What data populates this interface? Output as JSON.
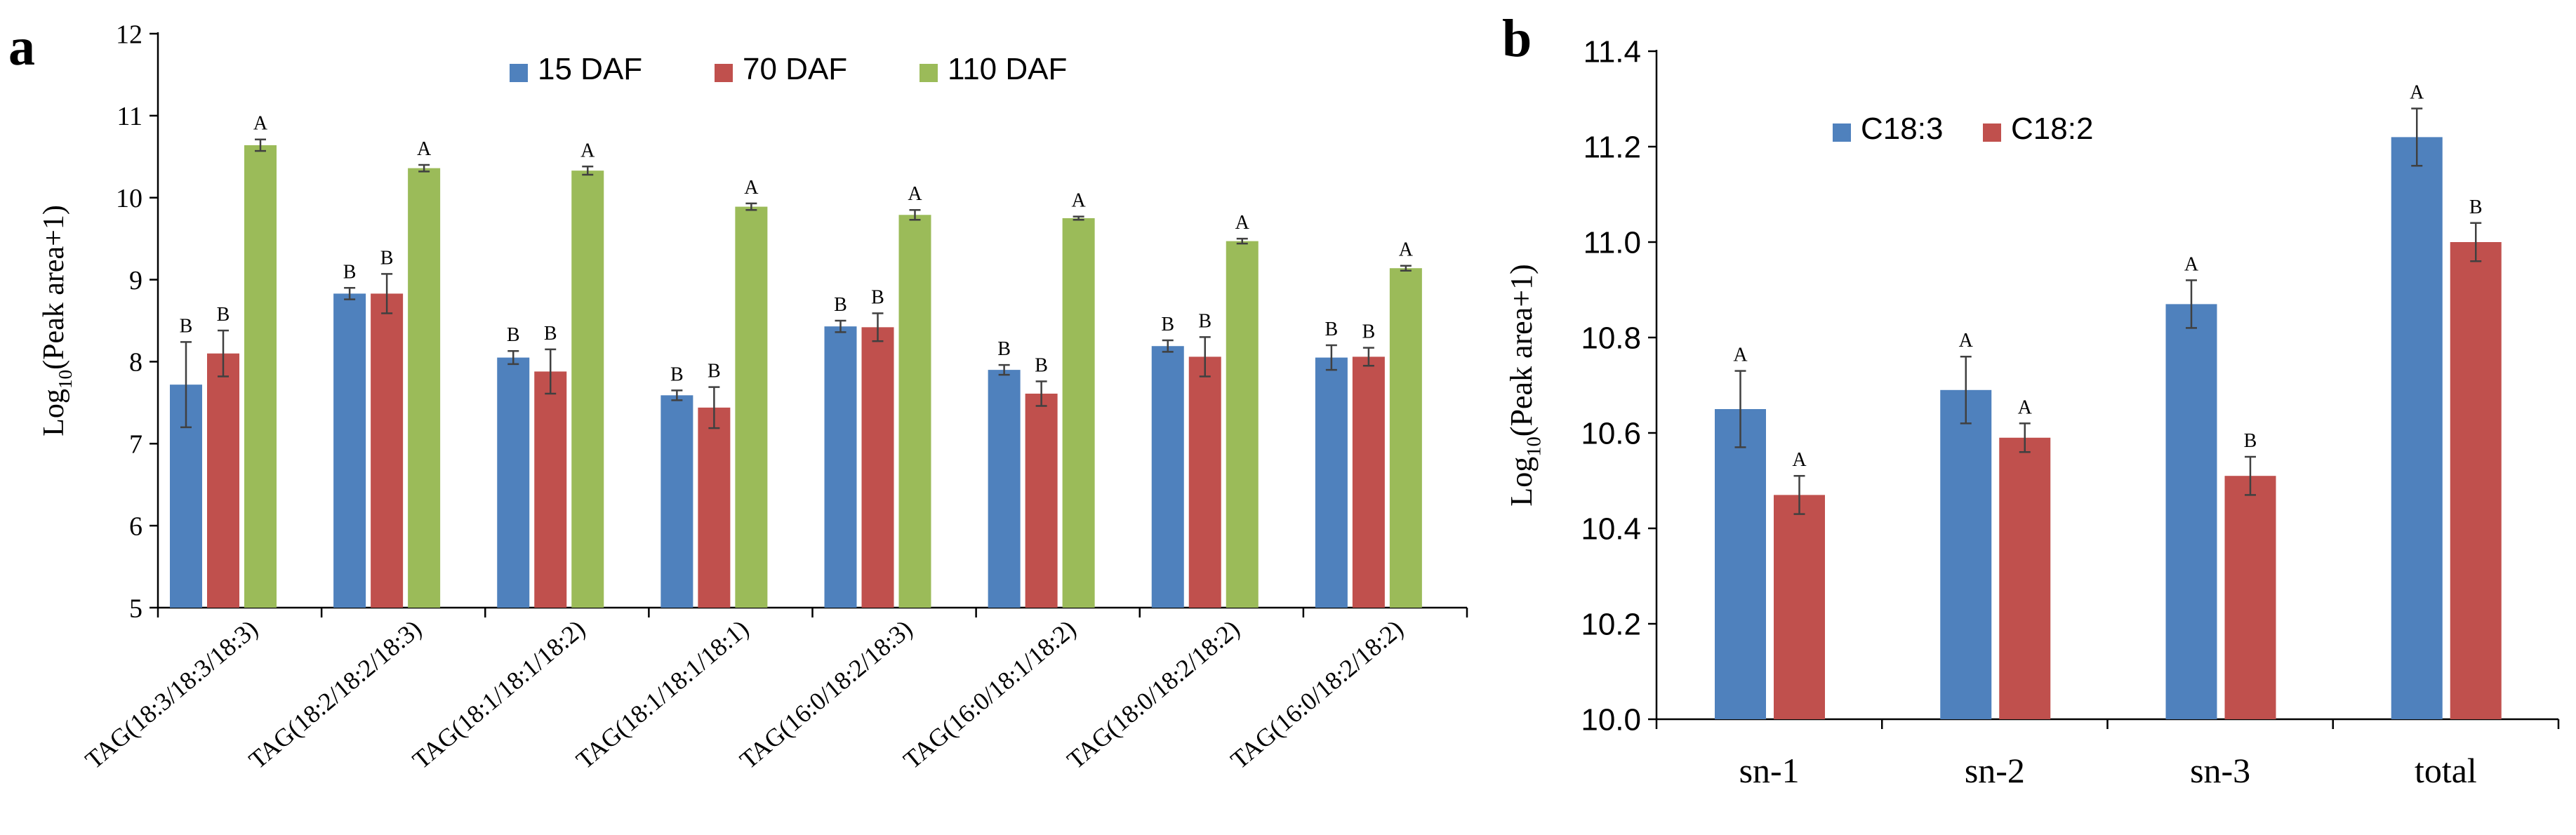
{
  "chart_data": [
    {
      "panel_label": "a",
      "type": "bar",
      "title": "",
      "xlabel": "",
      "ylabel": {
        "prefix": "Log",
        "subscript": "10",
        "suffix": "(Peak area+1)"
      },
      "ylim": [
        5,
        12
      ],
      "yticks": [
        "5",
        "6",
        "7",
        "8",
        "9",
        "10",
        "11",
        "12"
      ],
      "legend_position": "top-center",
      "categories": [
        "TAG(18:3/18:3/18:3)",
        "TAG(18:2/18:2/18:3)",
        "TAG(18:1/18:1/18:2)",
        "TAG(18:1/18:1/18:1)",
        "TAG(16:0/18:2/18:3)",
        "TAG(16:0/18:1/18:2)",
        "TAG(18:0/18:2/18:2)",
        "TAG(16:0/18:2/18:2)"
      ],
      "series": [
        {
          "name": "15 DAF",
          "color": "#4F81BD",
          "values": [
            7.72,
            8.83,
            8.05,
            7.59,
            8.43,
            7.9,
            8.19,
            8.05
          ],
          "errors": [
            0.52,
            0.07,
            0.08,
            0.06,
            0.07,
            0.06,
            0.07,
            0.15
          ],
          "letters": [
            "B",
            "B",
            "B",
            "B",
            "B",
            "B",
            "B",
            "B"
          ]
        },
        {
          "name": "70 DAF",
          "color": "#C0504D",
          "values": [
            8.1,
            8.83,
            7.88,
            7.44,
            8.42,
            7.61,
            8.06,
            8.06
          ],
          "errors": [
            0.28,
            0.24,
            0.27,
            0.25,
            0.17,
            0.15,
            0.24,
            0.11
          ],
          "letters": [
            "B",
            "B",
            "B",
            "B",
            "B",
            "B",
            "B",
            "B"
          ]
        },
        {
          "name": "110 DAF",
          "color": "#9BBB59",
          "values": [
            10.64,
            10.36,
            10.33,
            9.89,
            9.79,
            9.75,
            9.47,
            9.14
          ],
          "errors": [
            0.07,
            0.04,
            0.05,
            0.04,
            0.06,
            0.02,
            0.03,
            0.03
          ],
          "letters": [
            "A",
            "A",
            "A",
            "A",
            "A",
            "A",
            "A",
            "A"
          ]
        }
      ]
    },
    {
      "panel_label": "b",
      "type": "bar",
      "title": "",
      "xlabel": "",
      "ylabel": {
        "prefix": "Log",
        "subscript": "10",
        "suffix": "(Peak area+1)"
      },
      "ylim": [
        10.0,
        11.4
      ],
      "yticks": [
        "10.0",
        "10.2",
        "10.4",
        "10.6",
        "10.8",
        "11.0",
        "11.2",
        "11.4"
      ],
      "legend_position": "top-left",
      "categories": [
        "sn-1",
        "sn-2",
        "sn-3",
        "total"
      ],
      "series": [
        {
          "name": "C18:3",
          "color": "#4F81BD",
          "values": [
            10.65,
            10.69,
            10.87,
            11.22
          ],
          "errors": [
            0.08,
            0.07,
            0.05,
            0.06
          ],
          "letters": [
            "A",
            "A",
            "A",
            "A"
          ]
        },
        {
          "name": "C18:2",
          "color": "#C0504D",
          "values": [
            10.47,
            10.59,
            10.51,
            11.0
          ],
          "errors": [
            0.04,
            0.03,
            0.04,
            0.04
          ],
          "letters": [
            "A",
            "A",
            "B",
            "B"
          ]
        }
      ]
    }
  ]
}
